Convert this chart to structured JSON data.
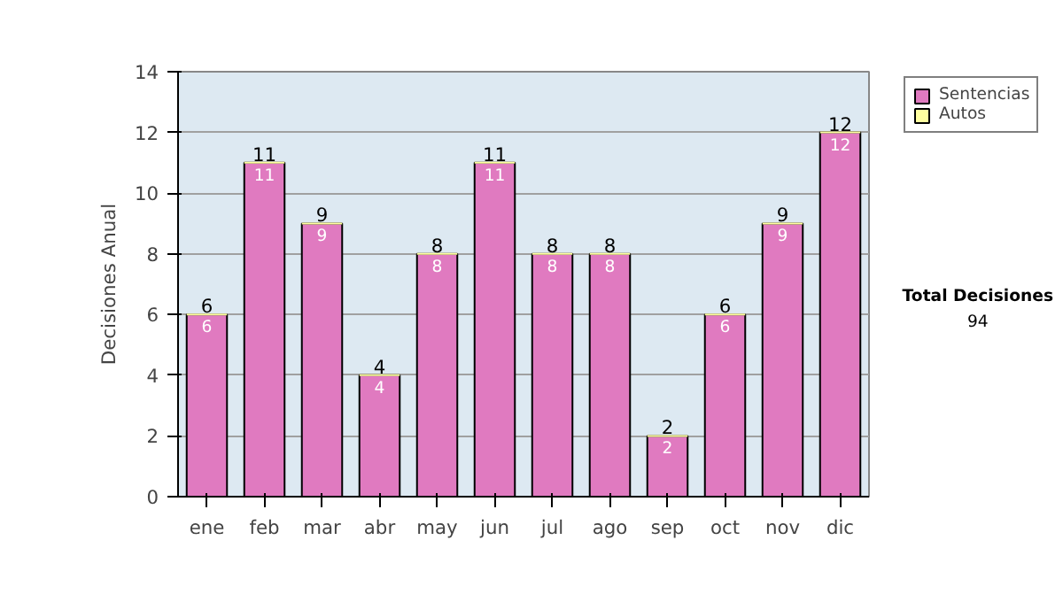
{
  "chart_data": {
    "type": "bar",
    "stacked": true,
    "ylabel": "Decisiones Anual",
    "categories": [
      "ene",
      "feb",
      "mar",
      "abr",
      "may",
      "jun",
      "jul",
      "ago",
      "sep",
      "oct",
      "nov",
      "dic"
    ],
    "series": [
      {
        "name": "Sentencias",
        "color": "#e07ac0",
        "values": [
          6,
          11,
          9,
          4,
          8,
          11,
          8,
          8,
          2,
          6,
          9,
          12
        ]
      },
      {
        "name": "Autos",
        "color": "#ffffa0",
        "values": [
          0,
          0,
          0,
          0,
          0,
          0,
          0,
          0,
          0,
          0,
          0,
          0
        ],
        "value_labels": [
          null,
          null,
          null,
          null,
          null,
          null,
          null,
          null,
          null,
          null,
          null,
          null
        ]
      }
    ],
    "totals": [
      "6",
      "11",
      "9",
      "4",
      "8",
      "11",
      "8",
      "8",
      "2",
      "6",
      "9",
      "12"
    ],
    "data_labels": true,
    "ylim": [
      0,
      14
    ],
    "yticks": [
      0,
      2,
      4,
      6,
      8,
      10,
      12,
      14
    ],
    "grid": "y",
    "legend": "right",
    "annotations": [
      "Total Decisiones",
      "94"
    ]
  }
}
